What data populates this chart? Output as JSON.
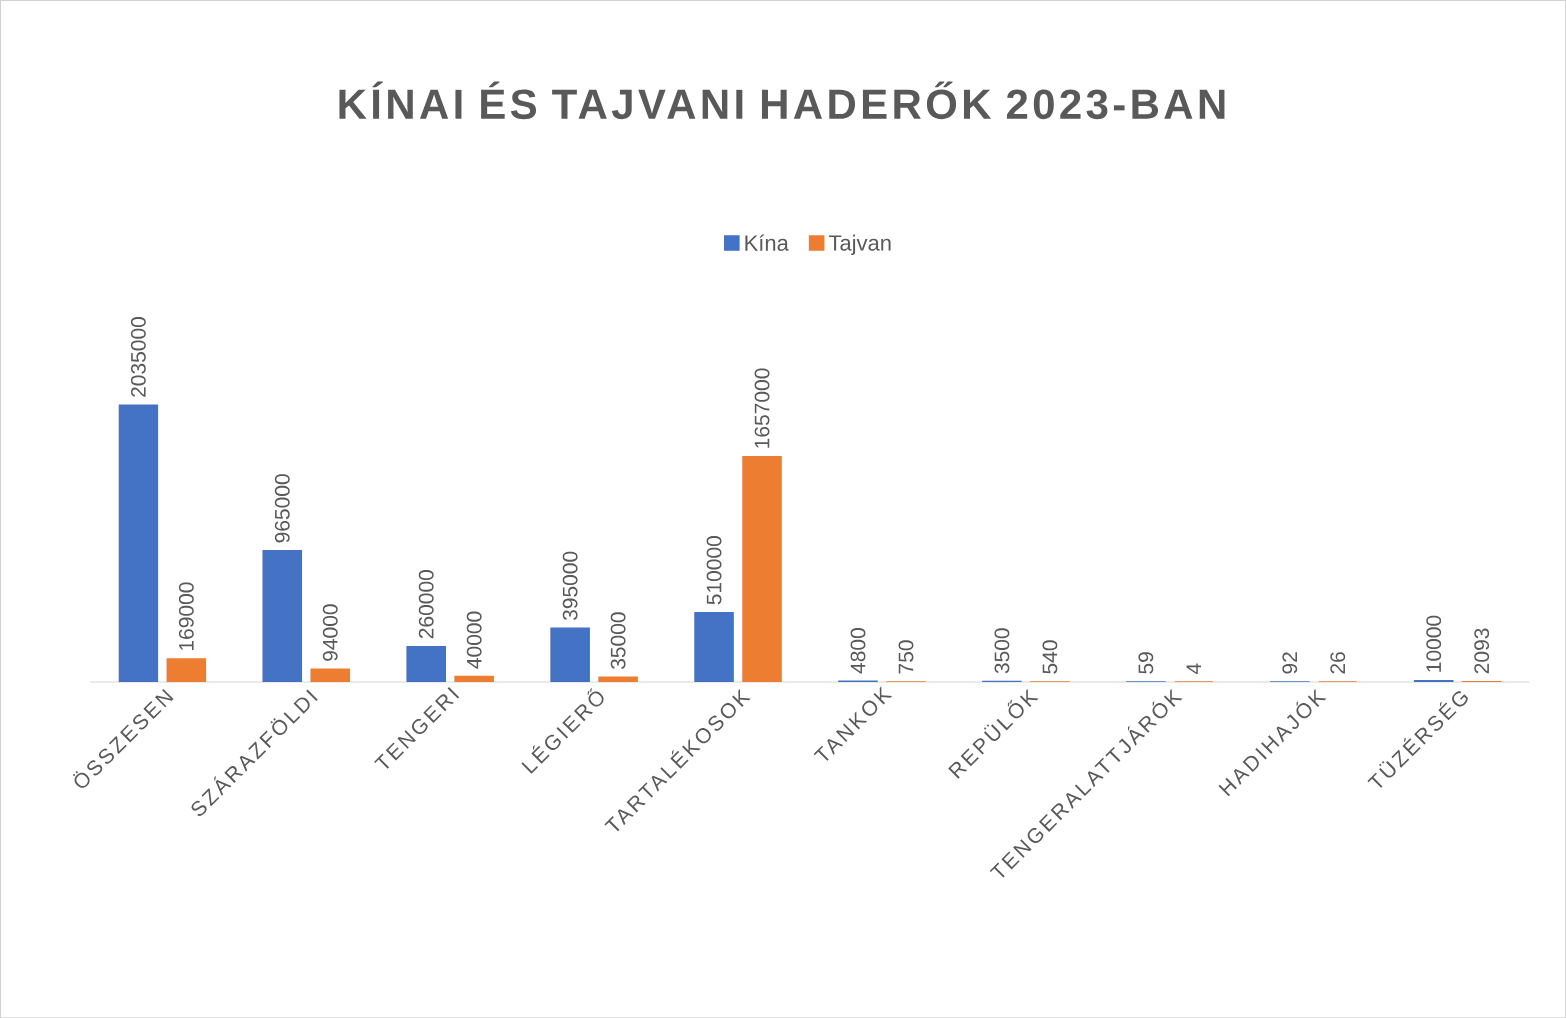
{
  "chart_data": {
    "type": "bar",
    "title": "KÍNAI ÉS TAJVANI HADERŐK 2023-BAN",
    "categories": [
      "ÖSSZESEN",
      "SZÁRAZFÖLDI",
      "TENGERI",
      "LÉGIERŐ",
      "TARTALÉKOSOK",
      "TANKOK",
      "REPÜLŐK",
      "TENGERALATTJÁRÓK",
      "HADIHAJÓK",
      "TÜZÉRSÉG"
    ],
    "series": [
      {
        "name": "Kína",
        "color": "#4472c4",
        "values": [
          2035000,
          965000,
          260000,
          395000,
          510000,
          4800,
          3500,
          59,
          92,
          10000
        ]
      },
      {
        "name": "Tajvan",
        "color": "#ed7d31",
        "values": [
          169000,
          94000,
          40000,
          35000,
          1657000,
          750,
          540,
          4,
          26,
          2093
        ]
      }
    ],
    "data_labels": true,
    "legend": "top"
  }
}
